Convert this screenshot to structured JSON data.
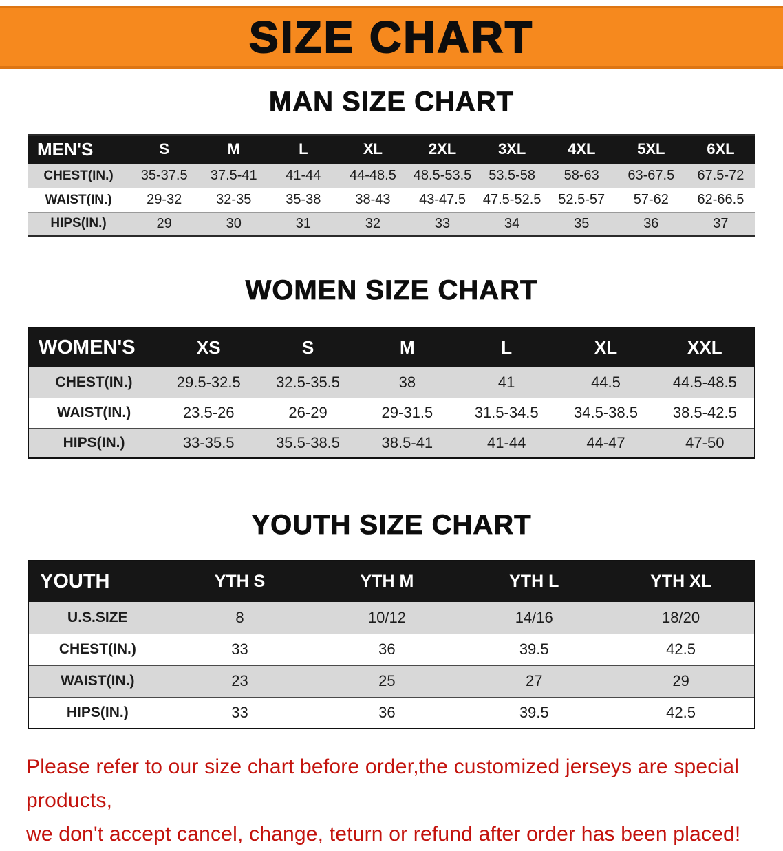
{
  "banner": {
    "title": "SIZE CHART"
  },
  "colors": {
    "banner_bg": "#F6891E",
    "banner_edge": "#DD7513",
    "header_bg": "#161616",
    "row_alt": "#D8D8D8",
    "notice_red": "#C3130D"
  },
  "men": {
    "heading": "MAN SIZE CHART",
    "table": {
      "header": [
        "MEN'S",
        "S",
        "M",
        "L",
        "XL",
        "2XL",
        "3XL",
        "4XL",
        "5XL",
        "6XL"
      ],
      "rows": [
        [
          "CHEST(IN.)",
          "35-37.5",
          "37.5-41",
          "41-44",
          "44-48.5",
          "48.5-53.5",
          "53.5-58",
          "58-63",
          "63-67.5",
          "67.5-72"
        ],
        [
          "WAIST(IN.)",
          "29-32",
          "32-35",
          "35-38",
          "38-43",
          "43-47.5",
          "47.5-52.5",
          "52.5-57",
          "57-62",
          "62-66.5"
        ],
        [
          "HIPS(IN.)",
          "29",
          "30",
          "31",
          "32",
          "33",
          "34",
          "35",
          "36",
          "37"
        ]
      ]
    }
  },
  "women": {
    "heading": "WOMEN SIZE CHART",
    "table": {
      "header": [
        "WOMEN'S",
        "XS",
        "S",
        "M",
        "L",
        "XL",
        "XXL"
      ],
      "rows": [
        [
          "CHEST(IN.)",
          "29.5-32.5",
          "32.5-35.5",
          "38",
          "41",
          "44.5",
          "44.5-48.5"
        ],
        [
          "WAIST(IN.)",
          "23.5-26",
          "26-29",
          "29-31.5",
          "31.5-34.5",
          "34.5-38.5",
          "38.5-42.5"
        ],
        [
          "HIPS(IN.)",
          "33-35.5",
          "35.5-38.5",
          "38.5-41",
          "41-44",
          "44-47",
          "47-50"
        ]
      ]
    }
  },
  "youth": {
    "heading": "YOUTH SIZE CHART",
    "table": {
      "header": [
        "YOUTH",
        "YTH S",
        "YTH M",
        "YTH L",
        "YTH XL"
      ],
      "rows": [
        [
          "U.S.SIZE",
          "8",
          "10/12",
          "14/16",
          "18/20"
        ],
        [
          "CHEST(IN.)",
          "33",
          "36",
          "39.5",
          "42.5"
        ],
        [
          "WAIST(IN.)",
          "23",
          "25",
          "27",
          "29"
        ],
        [
          "HIPS(IN.)",
          "33",
          "36",
          "39.5",
          "42.5"
        ]
      ]
    }
  },
  "notice": {
    "line1": "Please refer to our size chart before order,the customized jerseys are special products,",
    "line2": "we don't accept cancel, change, teturn or refund after order has been placed!"
  }
}
